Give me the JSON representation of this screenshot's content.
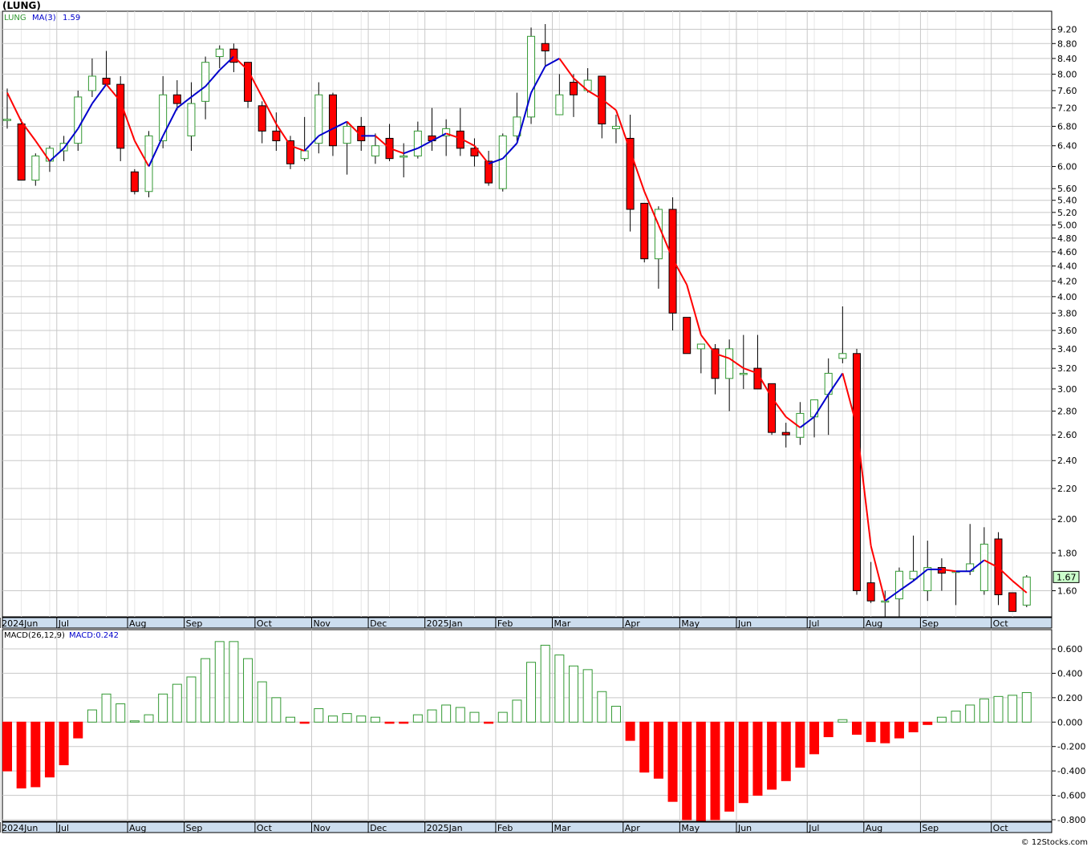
{
  "header": {
    "title": "(LUNG)"
  },
  "watermark": "© 12Stocks.com",
  "colors": {
    "up": "#339933",
    "down": "#ff0000",
    "ma_up": "#0000cc",
    "ma_down": "#ff0000",
    "grid": "#c8c8c8",
    "last_price_bg": "#ccffcc"
  },
  "chart_data": [
    {
      "type": "candlestick",
      "title": "(LUNG)",
      "scale": "log",
      "legend": {
        "ticker": "LUNG",
        "ma_label": "MA(3)",
        "ma_value": "1.59"
      },
      "last_price_label": "1.67",
      "ylim": [
        1.44,
        9.6
      ],
      "y_ticks": [
        "1.60",
        "1.80",
        "2.00",
        "2.20",
        "2.40",
        "2.60",
        "2.80",
        "3.00",
        "3.20",
        "3.40",
        "3.60",
        "3.80",
        "4.00",
        "4.20",
        "4.40",
        "4.60",
        "4.80",
        "5.00",
        "5.20",
        "5.40",
        "5.60",
        "6.00",
        "6.40",
        "6.80",
        "7.20",
        "7.60",
        "8.00",
        "8.40",
        "8.80",
        "9.20"
      ],
      "x_labels": [
        {
          "label": "2024Jun",
          "i": 0
        },
        {
          "label": "Jul",
          "i": 4
        },
        {
          "label": "Aug",
          "i": 9
        },
        {
          "label": "Sep",
          "i": 13
        },
        {
          "label": "Oct",
          "i": 18
        },
        {
          "label": "Nov",
          "i": 22
        },
        {
          "label": "Dec",
          "i": 26
        },
        {
          "label": "2025Jan",
          "i": 30
        },
        {
          "label": "Feb",
          "i": 35
        },
        {
          "label": "Mar",
          "i": 39
        },
        {
          "label": "Apr",
          "i": 44
        },
        {
          "label": "May",
          "i": 48
        },
        {
          "label": "Jun",
          "i": 52
        },
        {
          "label": "Jul",
          "i": 57
        },
        {
          "label": "Aug",
          "i": 61
        },
        {
          "label": "Sep",
          "i": 65
        },
        {
          "label": "Oct",
          "i": 70
        }
      ],
      "candles": [
        {
          "o": 6.95,
          "h": 7.65,
          "l": 6.75,
          "c": 6.95
        },
        {
          "o": 6.85,
          "h": 6.95,
          "l": 5.75,
          "c": 5.75
        },
        {
          "o": 5.75,
          "h": 6.25,
          "l": 5.65,
          "c": 6.2
        },
        {
          "o": 6.1,
          "h": 6.4,
          "l": 5.9,
          "c": 6.35
        },
        {
          "o": 6.3,
          "h": 6.6,
          "l": 6.1,
          "c": 6.45
        },
        {
          "o": 6.45,
          "h": 7.6,
          "l": 6.3,
          "c": 7.45
        },
        {
          "o": 7.6,
          "h": 8.4,
          "l": 7.45,
          "c": 7.95
        },
        {
          "o": 7.9,
          "h": 8.6,
          "l": 7.75,
          "c": 7.75
        },
        {
          "o": 7.75,
          "h": 7.95,
          "l": 6.1,
          "c": 6.35
        },
        {
          "o": 5.9,
          "h": 5.95,
          "l": 5.5,
          "c": 5.55
        },
        {
          "o": 5.55,
          "h": 6.7,
          "l": 5.45,
          "c": 6.6
        },
        {
          "o": 6.5,
          "h": 7.95,
          "l": 6.35,
          "c": 7.5
        },
        {
          "o": 7.5,
          "h": 7.85,
          "l": 7.15,
          "c": 7.3
        },
        {
          "o": 6.6,
          "h": 7.8,
          "l": 6.3,
          "c": 7.3
        },
        {
          "o": 7.35,
          "h": 8.45,
          "l": 6.95,
          "c": 8.3
        },
        {
          "o": 8.45,
          "h": 8.75,
          "l": 8.15,
          "c": 8.65
        },
        {
          "o": 8.65,
          "h": 8.8,
          "l": 8.05,
          "c": 8.3
        },
        {
          "o": 8.3,
          "h": 8.3,
          "l": 7.2,
          "c": 7.35
        },
        {
          "o": 7.25,
          "h": 7.35,
          "l": 6.45,
          "c": 6.7
        },
        {
          "o": 6.7,
          "h": 7.1,
          "l": 6.3,
          "c": 6.5
        },
        {
          "o": 6.5,
          "h": 6.6,
          "l": 5.95,
          "c": 6.05
        },
        {
          "o": 6.15,
          "h": 7.0,
          "l": 6.1,
          "c": 6.3
        },
        {
          "o": 6.45,
          "h": 7.8,
          "l": 6.25,
          "c": 7.5
        },
        {
          "o": 7.5,
          "h": 7.55,
          "l": 6.2,
          "c": 6.4
        },
        {
          "o": 6.45,
          "h": 6.9,
          "l": 5.85,
          "c": 6.8
        },
        {
          "o": 6.8,
          "h": 7.0,
          "l": 6.3,
          "c": 6.5
        },
        {
          "o": 6.2,
          "h": 6.65,
          "l": 6.05,
          "c": 6.4
        },
        {
          "o": 6.55,
          "h": 6.85,
          "l": 6.1,
          "c": 6.15
        },
        {
          "o": 6.2,
          "h": 6.45,
          "l": 5.8,
          "c": 6.2
        },
        {
          "o": 6.2,
          "h": 6.9,
          "l": 6.15,
          "c": 6.7
        },
        {
          "o": 6.6,
          "h": 7.2,
          "l": 6.3,
          "c": 6.5
        },
        {
          "o": 6.6,
          "h": 6.95,
          "l": 6.2,
          "c": 6.75
        },
        {
          "o": 6.7,
          "h": 7.2,
          "l": 6.2,
          "c": 6.35
        },
        {
          "o": 6.35,
          "h": 6.55,
          "l": 6.0,
          "c": 6.2
        },
        {
          "o": 6.1,
          "h": 6.3,
          "l": 5.65,
          "c": 5.7
        },
        {
          "o": 5.6,
          "h": 6.65,
          "l": 5.55,
          "c": 6.6
        },
        {
          "o": 6.6,
          "h": 7.55,
          "l": 6.5,
          "c": 7.0
        },
        {
          "o": 7.0,
          "h": 9.25,
          "l": 6.85,
          "c": 9.0
        },
        {
          "o": 8.8,
          "h": 9.35,
          "l": 8.2,
          "c": 8.6
        },
        {
          "o": 7.05,
          "h": 8.0,
          "l": 7.05,
          "c": 7.5
        },
        {
          "o": 7.8,
          "h": 8.0,
          "l": 7.0,
          "c": 7.5
        },
        {
          "o": 7.6,
          "h": 8.15,
          "l": 7.55,
          "c": 7.85
        },
        {
          "o": 7.95,
          "h": 7.95,
          "l": 6.55,
          "c": 6.85
        },
        {
          "o": 6.75,
          "h": 7.05,
          "l": 6.45,
          "c": 6.8
        },
        {
          "o": 6.55,
          "h": 7.05,
          "l": 4.9,
          "c": 5.25
        },
        {
          "o": 5.35,
          "h": 5.35,
          "l": 4.45,
          "c": 4.5
        },
        {
          "o": 4.5,
          "h": 5.3,
          "l": 4.1,
          "c": 5.25
        },
        {
          "o": 5.25,
          "h": 5.45,
          "l": 3.6,
          "c": 3.8
        },
        {
          "o": 3.75,
          "h": 3.75,
          "l": 3.35,
          "c": 3.35
        },
        {
          "o": 3.4,
          "h": 3.45,
          "l": 3.15,
          "c": 3.45
        },
        {
          "o": 3.4,
          "h": 3.45,
          "l": 2.95,
          "c": 3.1
        },
        {
          "o": 3.1,
          "h": 3.5,
          "l": 2.8,
          "c": 3.4
        },
        {
          "o": 3.15,
          "h": 3.55,
          "l": 3.0,
          "c": 3.15
        },
        {
          "o": 3.2,
          "h": 3.55,
          "l": 3.0,
          "c": 3.0
        },
        {
          "o": 3.05,
          "h": 3.05,
          "l": 2.6,
          "c": 2.62
        },
        {
          "o": 2.62,
          "h": 2.7,
          "l": 2.5,
          "c": 2.6
        },
        {
          "o": 2.58,
          "h": 2.88,
          "l": 2.52,
          "c": 2.78
        },
        {
          "o": 2.75,
          "h": 2.9,
          "l": 2.58,
          "c": 2.9
        },
        {
          "o": 2.95,
          "h": 3.3,
          "l": 2.6,
          "c": 3.15
        },
        {
          "o": 3.3,
          "h": 3.88,
          "l": 3.25,
          "c": 3.35
        },
        {
          "o": 3.35,
          "h": 3.4,
          "l": 1.58,
          "c": 1.6
        },
        {
          "o": 1.64,
          "h": 1.75,
          "l": 1.54,
          "c": 1.55
        },
        {
          "o": 1.55,
          "h": 1.6,
          "l": 1.44,
          "c": 1.55
        },
        {
          "o": 1.56,
          "h": 1.72,
          "l": 1.45,
          "c": 1.7
        },
        {
          "o": 1.66,
          "h": 1.9,
          "l": 1.65,
          "c": 1.7
        },
        {
          "o": 1.6,
          "h": 1.87,
          "l": 1.55,
          "c": 1.72
        },
        {
          "o": 1.72,
          "h": 1.77,
          "l": 1.6,
          "c": 1.69
        },
        {
          "o": 1.7,
          "h": 1.7,
          "l": 1.53,
          "c": 1.7
        },
        {
          "o": 1.7,
          "h": 1.97,
          "l": 1.68,
          "c": 1.74
        },
        {
          "o": 1.6,
          "h": 1.95,
          "l": 1.58,
          "c": 1.85
        },
        {
          "o": 1.88,
          "h": 1.92,
          "l": 1.53,
          "c": 1.58
        },
        {
          "o": 1.59,
          "h": 1.59,
          "l": 1.5,
          "c": 1.5
        },
        {
          "o": 1.53,
          "h": 1.68,
          "l": 1.52,
          "c": 1.67
        }
      ],
      "ma3": [
        7.55,
        6.9,
        6.5,
        6.1,
        6.35,
        6.75,
        7.3,
        7.75,
        7.35,
        6.5,
        6.0,
        6.6,
        7.2,
        7.45,
        7.7,
        8.1,
        8.45,
        8.1,
        7.45,
        6.85,
        6.4,
        6.3,
        6.6,
        6.75,
        6.9,
        6.6,
        6.6,
        6.35,
        6.25,
        6.35,
        6.5,
        6.65,
        6.55,
        6.4,
        6.05,
        6.15,
        6.45,
        7.55,
        8.2,
        8.4,
        7.9,
        7.6,
        7.4,
        7.15,
        6.3,
        5.55,
        5.0,
        4.5,
        4.15,
        3.55,
        3.35,
        3.3,
        3.2,
        3.15,
        2.92,
        2.75,
        2.66,
        2.75,
        2.95,
        3.15,
        2.67,
        1.84,
        1.55,
        1.6,
        1.65,
        1.71,
        1.71,
        1.7,
        1.7,
        1.76,
        1.72,
        1.65,
        1.59
      ]
    },
    {
      "type": "bar",
      "title": "",
      "legend": {
        "label": "MACD(26,12,9)",
        "value_label": "MACD:0.242"
      },
      "ylim": [
        -0.82,
        0.66
      ],
      "y_ticks": [
        "-0.800",
        "-0.600",
        "-0.400",
        "-0.200",
        "0.000",
        "0.200",
        "0.400",
        "0.600"
      ],
      "values": [
        -0.4,
        -0.54,
        -0.53,
        -0.45,
        -0.35,
        -0.13,
        0.1,
        0.23,
        0.15,
        0.01,
        0.06,
        0.23,
        0.31,
        0.37,
        0.52,
        0.66,
        0.66,
        0.52,
        0.33,
        0.2,
        0.04,
        -0.01,
        0.11,
        0.05,
        0.07,
        0.05,
        0.04,
        -0.01,
        -0.01,
        0.06,
        0.1,
        0.14,
        0.12,
        0.08,
        -0.01,
        0.08,
        0.18,
        0.49,
        0.63,
        0.55,
        0.46,
        0.43,
        0.25,
        0.13,
        -0.15,
        -0.41,
        -0.46,
        -0.65,
        -0.8,
        -0.84,
        -0.8,
        -0.73,
        -0.66,
        -0.6,
        -0.55,
        -0.48,
        -0.37,
        -0.26,
        -0.12,
        0.02,
        -0.1,
        -0.16,
        -0.17,
        -0.13,
        -0.08,
        -0.02,
        0.04,
        0.09,
        0.14,
        0.19,
        0.21,
        0.22,
        0.242
      ]
    }
  ]
}
